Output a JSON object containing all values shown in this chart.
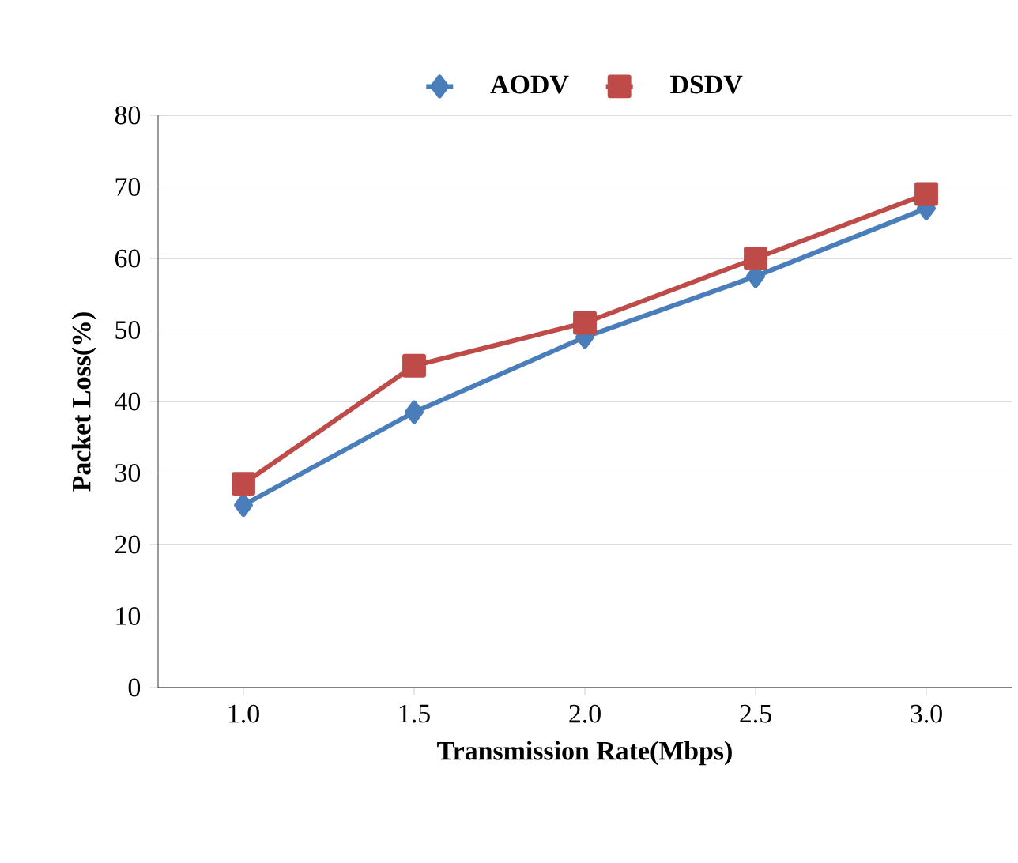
{
  "chart_data": {
    "type": "line",
    "xlabel": "Transmission Rate(Mbps)",
    "ylabel": "Packet Loss(%)",
    "categories": [
      "1.0",
      "1.5",
      "2.0",
      "2.5",
      "3.0"
    ],
    "series": [
      {
        "name": "AODV",
        "color": "#4a7ebb",
        "marker": "diamond",
        "values": [
          25.5,
          38.5,
          49,
          57.5,
          67
        ]
      },
      {
        "name": "DSDV",
        "color": "#be4b48",
        "marker": "square",
        "values": [
          28.5,
          45,
          51,
          60,
          69
        ]
      }
    ],
    "ylim": [
      0,
      80
    ],
    "yticks": [
      0,
      10,
      20,
      30,
      40,
      50,
      60,
      70,
      80
    ],
    "grid": "y",
    "legend": "top"
  }
}
